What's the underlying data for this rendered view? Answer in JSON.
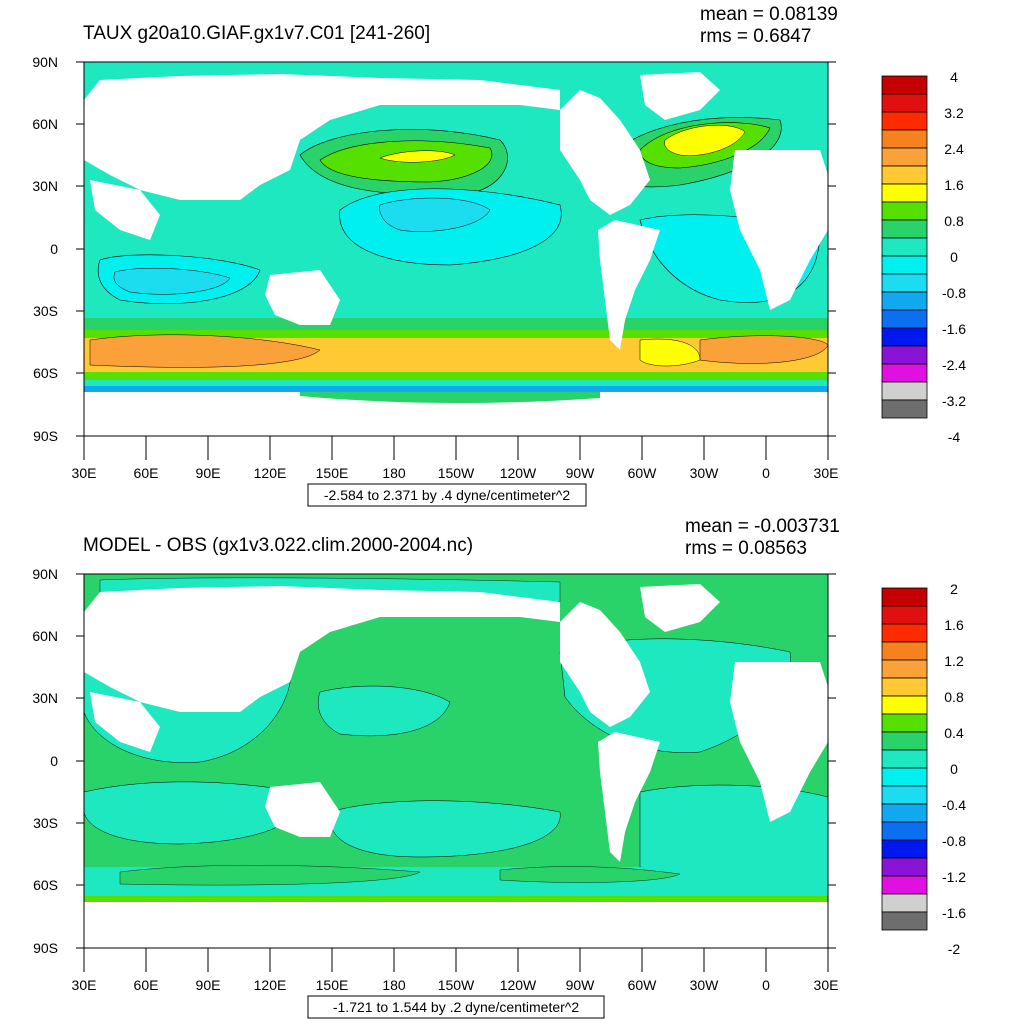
{
  "panels": [
    {
      "title": "TAUX g20a10.GIAF.gx1v7.C01 [241-260]",
      "mean": "mean = 0.08139",
      "rms": "rms = 0.6847",
      "info": "-2.584 to 2.371 by .4 dyne/centimeter^2",
      "colorbar_labels": [
        "4",
        "3.2",
        "2.4",
        "1.6",
        "0.8",
        "0",
        "-0.8",
        "-1.6",
        "-2.4",
        "-3.2",
        "-4"
      ]
    },
    {
      "title": "MODEL - OBS (gx1v3.022.clim.2000-2004.nc)",
      "mean": "mean = -0.003731",
      "rms": "rms = 0.08563",
      "info": "-1.721 to 1.544 by .2 dyne/centimeter^2",
      "colorbar_labels": [
        "2",
        "1.6",
        "1.2",
        "0.8",
        "0.4",
        "0",
        "-0.4",
        "-0.8",
        "-1.2",
        "-1.6",
        "-2"
      ]
    }
  ],
  "axes": {
    "lat_labels": [
      "90N",
      "60N",
      "30N",
      "0",
      "30S",
      "60S",
      "90S"
    ],
    "lon_labels": [
      "30E",
      "60E",
      "90E",
      "120E",
      "150E",
      "180",
      "150W",
      "120W",
      "90W",
      "60W",
      "30W",
      "0",
      "30E"
    ]
  },
  "colorbar_colors": [
    "#c40000",
    "#e01010",
    "#ff2a00",
    "#f5821f",
    "#fba13a",
    "#ffc933",
    "#ffff00",
    "#55e000",
    "#2ad36a",
    "#1de8c0",
    "#00f0f0",
    "#1cdcf0",
    "#10a8ee",
    "#0a6ff0",
    "#0018f0",
    "#8a14d6",
    "#e010e0",
    "#d0d0d0",
    "#6e6e6e"
  ],
  "map_colors": {
    "land": "#ffffff",
    "ocean_neutral": "#2ad36a",
    "ocean_slight_neg": "#1de8c0",
    "ocean_neg": "#00f0f0",
    "ocean_more_neg": "#1cdcf0",
    "ocean_pos_low": "#55e000",
    "ocean_pos_mid": "#ffff00",
    "ocean_pos_high": "#ffc933",
    "ocean_pos_peak": "#fba13a",
    "ocean_strong_neg": "#10a8ee",
    "ocean_extreme_neg": "#0018f0",
    "contour": "#000000"
  }
}
